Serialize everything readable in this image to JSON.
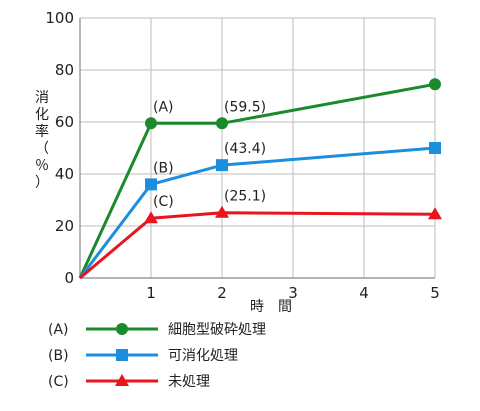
{
  "chart_data": {
    "type": "line",
    "x": [
      0,
      1,
      2,
      5
    ],
    "xticks": [
      "1",
      "2",
      "3",
      "4",
      "5"
    ],
    "xlim": [
      0,
      5
    ],
    "ylim": [
      0,
      100
    ],
    "yticks": [
      "0",
      "20",
      "40",
      "60",
      "80",
      "100"
    ],
    "xlabel": "時　間",
    "ylabel": [
      "消",
      "化",
      "率",
      "（",
      "％",
      "）"
    ],
    "grid": true,
    "legend_position": "bottom",
    "series": [
      {
        "key": "(A)",
        "name": "細胞型破砕処理",
        "color": "#1a8a2c",
        "marker": "circle",
        "values": [
          0,
          59.5,
          59.5,
          74.5
        ]
      },
      {
        "key": "(B)",
        "name": "可消化処理",
        "color": "#1c8ee0",
        "marker": "square",
        "values": [
          0,
          36,
          43.4,
          50
        ]
      },
      {
        "key": "(C)",
        "name": "未処理",
        "color": "#e8141e",
        "marker": "triangle",
        "values": [
          0,
          23,
          25.1,
          24.5
        ]
      }
    ],
    "annotations": [
      {
        "text": "(A)",
        "x": 1,
        "y": 59.5
      },
      {
        "text": "(59.5)",
        "x": 2,
        "y": 59.5
      },
      {
        "text": "(B)",
        "x": 1,
        "y": 36
      },
      {
        "text": "(43.4)",
        "x": 2,
        "y": 43.4
      },
      {
        "text": "(C)",
        "x": 1,
        "y": 23
      },
      {
        "text": "(25.1)",
        "x": 2,
        "y": 25.1
      }
    ]
  }
}
